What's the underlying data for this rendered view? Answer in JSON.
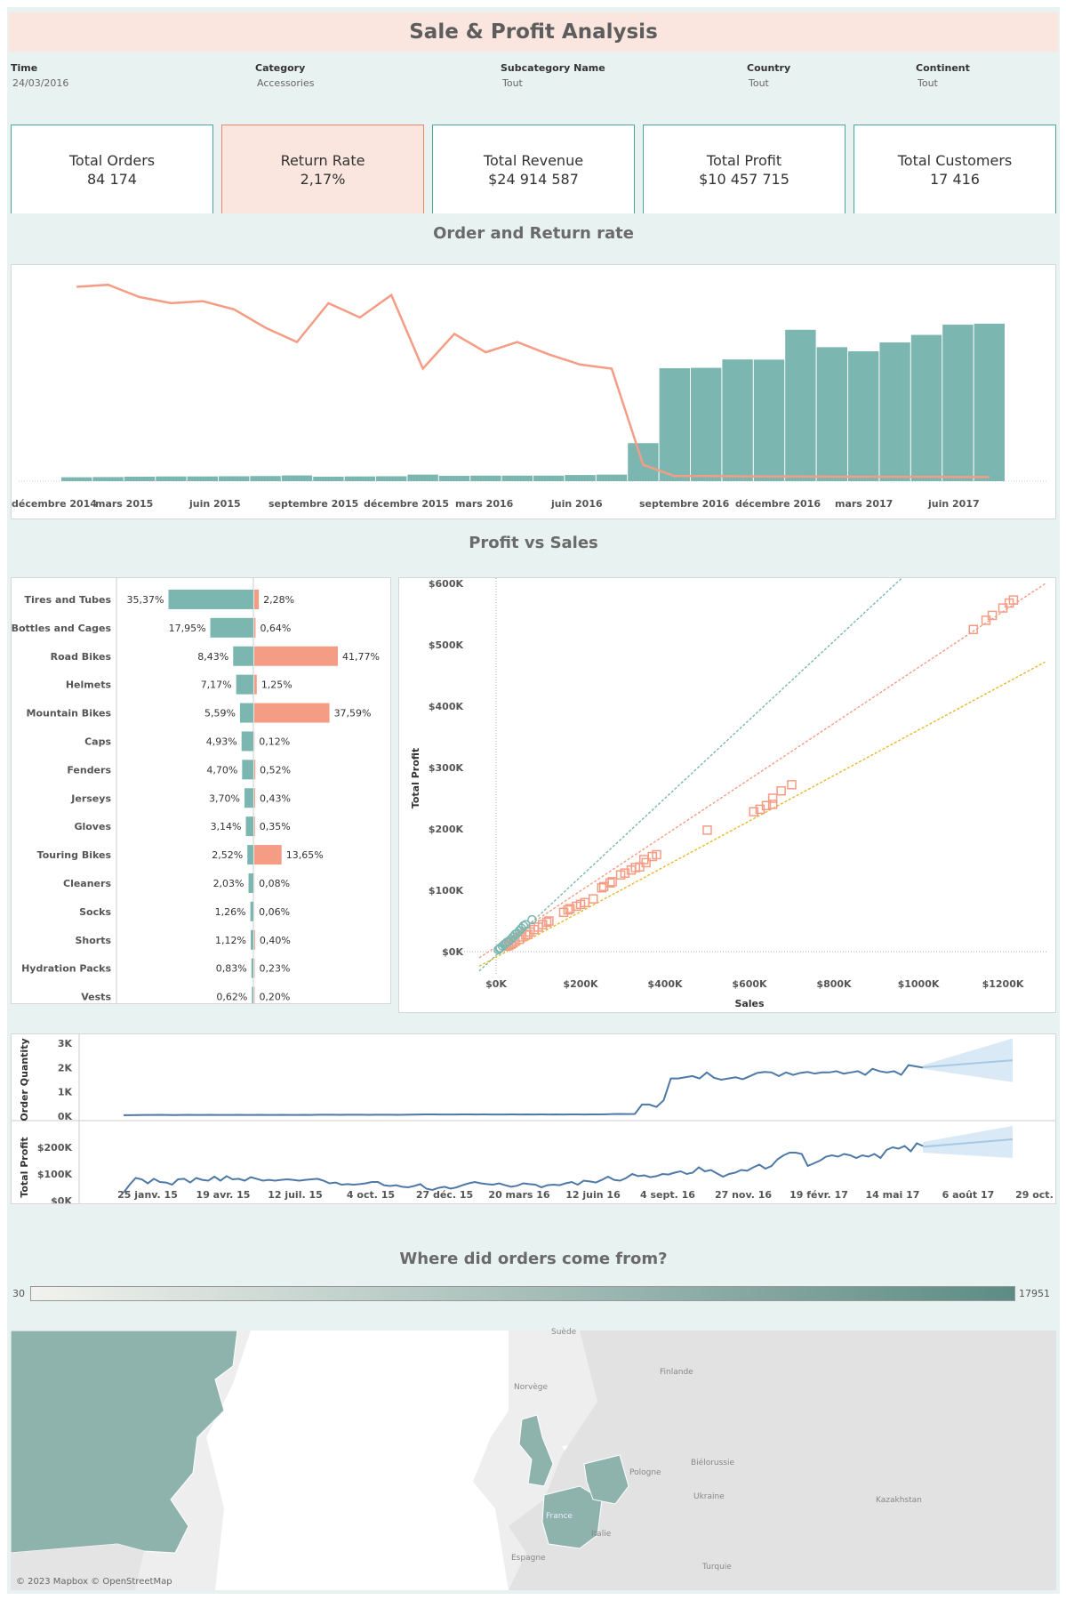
{
  "banner": {
    "title": "Sale & Profit Analysis"
  },
  "filters": [
    {
      "label": "Time",
      "value": "24/03/2016"
    },
    {
      "label": "Category",
      "value": "Accessories"
    },
    {
      "label": "Subcategory Name",
      "value": "Tout"
    },
    {
      "label": "Country",
      "value": "Tout"
    },
    {
      "label": "Continent",
      "value": "Tout"
    }
  ],
  "kpis": [
    {
      "label": "Total Orders",
      "value": "84 174"
    },
    {
      "label": "Return Rate",
      "value": "2,17%"
    },
    {
      "label": "Total Revenue",
      "value": "$24 914 587"
    },
    {
      "label": "Total Profit",
      "value": "$10 457 715"
    },
    {
      "label": "Total Customers",
      "value": "17 416"
    }
  ],
  "sections": {
    "order_return": "Order and Return rate",
    "profit_sales": "Profit vs Sales",
    "map": "Where did orders come from?"
  },
  "colors": {
    "teal": "#7bb7b0",
    "coral": "#f59c85",
    "blue": "#4e79a7",
    "light_blue": "#a6c8e4",
    "gold": "#e8b82c"
  },
  "chart_data": [
    {
      "type": "bar+line",
      "title": "Order and Return rate",
      "x_tick_labels": [
        "décembre 2014",
        "mars 2015",
        "juin 2015",
        "septembre 2015",
        "décembre 2015",
        "mars 2016",
        "juin 2016",
        "septembre 2016",
        "décembre 2016",
        "mars 2017",
        "juin 2017"
      ],
      "months": [
        "2015-01",
        "2015-02",
        "2015-03",
        "2015-04",
        "2015-05",
        "2015-06",
        "2015-07",
        "2015-08",
        "2015-09",
        "2015-10",
        "2015-11",
        "2015-12",
        "2016-01",
        "2016-02",
        "2016-03",
        "2016-04",
        "2016-05",
        "2016-06",
        "2016-07",
        "2016-08",
        "2016-09",
        "2016-10",
        "2016-11",
        "2016-12",
        "2017-01",
        "2017-02",
        "2017-03",
        "2017-04",
        "2017-05",
        "2017-06"
      ],
      "series": [
        {
          "type": "bar",
          "values": [
            1.9,
            2.0,
            2.2,
            2.3,
            2.3,
            2.4,
            2.5,
            2.8,
            2.2,
            2.3,
            2.4,
            3.2,
            2.6,
            2.7,
            2.7,
            2.7,
            3.0,
            3.2,
            18.6,
            55.2,
            55.4,
            59.5,
            59.4,
            74.0,
            65.5,
            63.5,
            67.8,
            71.5,
            76.5,
            77.0
          ]
        },
        {
          "type": "line",
          "values": [
            95,
            96,
            90,
            87,
            88,
            84,
            75,
            68,
            87,
            80,
            91,
            55,
            72,
            63,
            68,
            62,
            57,
            55,
            8,
            2.5,
            2.5,
            2.4,
            2.3,
            2.3,
            2.2,
            2.2,
            2.1,
            2.1,
            2.0,
            2.0
          ]
        }
      ]
    },
    {
      "type": "bar",
      "title": "",
      "categories": [
        "Tires and Tubes",
        "Bottles and Cages",
        "Road Bikes",
        "Helmets",
        "Mountain Bikes",
        "Caps",
        "Fenders",
        "Jerseys",
        "Gloves",
        "Touring Bikes",
        "Cleaners",
        "Socks",
        "Shorts",
        "Hydration Packs",
        "Vests"
      ],
      "series": [
        {
          "values": [
            35.37,
            17.95,
            8.43,
            7.17,
            5.59,
            4.93,
            4.7,
            3.7,
            3.14,
            2.52,
            2.03,
            1.26,
            1.12,
            0.83,
            0.62
          ],
          "labels": [
            "35,37%",
            "17,95%",
            "8,43%",
            "7,17%",
            "5,59%",
            "4,93%",
            "4,70%",
            "3,70%",
            "3,14%",
            "2,52%",
            "2,03%",
            "1,26%",
            "1,12%",
            "0,83%",
            "0,62%"
          ]
        },
        {
          "values": [
            2.28,
            0.64,
            41.77,
            1.25,
            37.59,
            0.12,
            0.52,
            0.43,
            0.35,
            13.65,
            0.08,
            0.06,
            0.4,
            0.23,
            0.2
          ],
          "labels": [
            "2,28%",
            "0,64%",
            "41,77%",
            "1,25%",
            "37,59%",
            "0,12%",
            "0,52%",
            "0,43%",
            "0,35%",
            "13,65%",
            "0,08%",
            "0,06%",
            "0,40%",
            "0,23%",
            "0,20%"
          ]
        }
      ]
    },
    {
      "type": "scatter",
      "title": "",
      "xlabel": "Sales",
      "ylabel": "Total Profit",
      "x_ticks": [
        "$0K",
        "$200K",
        "$400K",
        "$600K",
        "$800K",
        "$1000K",
        "$1200K"
      ],
      "y_ticks": [
        "$0K",
        "$100K",
        "$200K",
        "$300K",
        "$400K",
        "$500K",
        "$600K"
      ],
      "xlim": [
        0,
        1250
      ],
      "ylim": [
        -30,
        610
      ],
      "series": [
        {
          "marker": "square",
          "points": [
            [
              1130,
              525
            ],
            [
              1160,
              540
            ],
            [
              1175,
              548
            ],
            [
              1200,
              560
            ],
            [
              1215,
              568
            ],
            [
              1225,
              573
            ],
            [
              655,
              250
            ],
            [
              675,
              262
            ],
            [
              700,
              272
            ],
            [
              610,
              228
            ],
            [
              625,
              232
            ],
            [
              640,
              238
            ],
            [
              655,
              240
            ],
            [
              500,
              198
            ],
            [
              350,
              150
            ],
            [
              355,
              145
            ],
            [
              370,
              155
            ],
            [
              380,
              158
            ],
            [
              320,
              133
            ],
            [
              330,
              137
            ],
            [
              340,
              138
            ],
            [
              295,
              125
            ],
            [
              305,
              128
            ],
            [
              270,
              112
            ],
            [
              275,
              114
            ],
            [
              250,
              104
            ],
            [
              255,
              106
            ],
            [
              190,
              74
            ],
            [
              200,
              77
            ],
            [
              210,
              80
            ],
            [
              230,
              86
            ],
            [
              160,
              64
            ],
            [
              170,
              68
            ],
            [
              175,
              70
            ],
            [
              120,
              48
            ],
            [
              125,
              50
            ],
            [
              110,
              44
            ],
            [
              100,
              40
            ],
            [
              90,
              36
            ],
            [
              80,
              32
            ],
            [
              75,
              28
            ],
            [
              70,
              27
            ],
            [
              60,
              24
            ],
            [
              55,
              20
            ],
            [
              45,
              17
            ],
            [
              40,
              14
            ],
            [
              35,
              12
            ],
            [
              30,
              10
            ],
            [
              25,
              9
            ]
          ]
        },
        {
          "marker": "circle",
          "points": [
            [
              85,
              52
            ],
            [
              70,
              44
            ],
            [
              65,
              42
            ],
            [
              60,
              38
            ],
            [
              55,
              34
            ],
            [
              50,
              30
            ],
            [
              45,
              28
            ],
            [
              40,
              24
            ],
            [
              35,
              20
            ],
            [
              30,
              17
            ],
            [
              25,
              15
            ],
            [
              20,
              12
            ],
            [
              15,
              9
            ],
            [
              10,
              6
            ],
            [
              8,
              5
            ],
            [
              5,
              3
            ]
          ]
        }
      ],
      "trend_lines": [
        {
          "color": "teal",
          "slope": 0.64,
          "intercept": -6
        },
        {
          "color": "coral",
          "slope": 0.455,
          "intercept": 8
        },
        {
          "color": "gold",
          "slope": 0.37,
          "intercept": -9
        }
      ]
    },
    {
      "type": "line",
      "ylabel": "Order Quantity",
      "y_ticks": [
        "0K",
        "1K",
        "2K",
        "3K"
      ],
      "ylim": [
        0,
        3000
      ],
      "x_tick_labels": [
        "25 janv. 15",
        "19 avr. 15",
        "12 juil. 15",
        "4 oct. 15",
        "27 déc. 15",
        "20 mars 16",
        "12 juin 16",
        "4 sept. 16",
        "27 nov. 16",
        "19 févr. 17",
        "14 mai 17",
        "6 août 17",
        "29 oct. 17"
      ],
      "values": [
        40,
        40,
        45,
        50,
        52,
        55,
        50,
        48,
        52,
        55,
        50,
        52,
        55,
        50,
        52,
        50,
        55,
        52,
        50,
        55,
        52,
        50,
        55,
        52,
        50,
        55,
        52,
        58,
        60,
        58,
        55,
        58,
        60,
        58,
        55,
        58,
        60,
        58,
        55,
        60,
        65,
        70,
        75,
        72,
        70,
        68,
        70,
        72,
        75,
        70,
        72,
        70,
        68,
        70,
        72,
        70,
        75,
        70,
        72,
        70,
        75,
        70,
        72,
        75,
        70,
        72,
        75,
        80,
        85,
        90,
        85,
        90,
        480,
        480,
        380,
        650,
        1550,
        1550,
        1600,
        1650,
        1550,
        1800,
        1580,
        1500,
        1550,
        1600,
        1520,
        1650,
        1780,
        1820,
        1800,
        1650,
        1800,
        1700,
        1780,
        1820,
        1750,
        1800,
        1800,
        1850,
        1750,
        1800,
        1850,
        1700,
        1950,
        1850,
        1800,
        1850,
        1700,
        2100,
        2050,
        2000
      ],
      "forecast": {
        "start": 2010,
        "end": 2300,
        "upper": [
          2100,
          3200
        ],
        "lower": [
          1950,
          1400
        ]
      }
    },
    {
      "type": "line",
      "ylabel": "Total Profit",
      "y_ticks": [
        "$0K",
        "$100K",
        "$200K"
      ],
      "ylim": [
        -20000,
        230000
      ],
      "values": [
        10000,
        40000,
        65000,
        60000,
        45000,
        62000,
        50000,
        48000,
        40000,
        60000,
        62000,
        48000,
        65000,
        58000,
        55000,
        70000,
        55000,
        72000,
        60000,
        62000,
        55000,
        68000,
        62000,
        55000,
        58000,
        55000,
        58000,
        60000,
        58000,
        55000,
        58000,
        60000,
        62000,
        55000,
        45000,
        48000,
        40000,
        42000,
        40000,
        42000,
        45000,
        50000,
        50000,
        38000,
        35000,
        38000,
        32000,
        30000,
        35000,
        42000,
        25000,
        20000,
        28000,
        32000,
        25000,
        30000,
        38000,
        45000,
        50000,
        45000,
        42000,
        40000,
        45000,
        38000,
        32000,
        36000,
        45000,
        42000,
        40000,
        30000,
        38000,
        40000,
        38000,
        45000,
        50000,
        40000,
        55000,
        52000,
        48000,
        58000,
        70000,
        58000,
        55000,
        65000,
        80000,
        72000,
        75000,
        68000,
        72000,
        80000,
        78000,
        85000,
        90000,
        80000,
        85000,
        105000,
        90000,
        95000,
        82000,
        70000,
        80000,
        85000,
        95000,
        92000,
        105000,
        115000,
        100000,
        110000,
        135000,
        150000,
        160000,
        160000,
        155000,
        110000,
        120000,
        130000,
        145000,
        150000,
        145000,
        155000,
        150000,
        140000,
        150000,
        145000,
        155000,
        140000,
        170000,
        180000,
        175000,
        185000,
        165000,
        195000,
        185000
      ],
      "forecast": {
        "start": 182000,
        "end": 210000,
        "upper": [
          200000,
          260000
        ],
        "lower": [
          160000,
          140000
        ]
      }
    }
  ],
  "legend_scale": {
    "min": "30",
    "max": "17951"
  },
  "map": {
    "labels": [
      "Suède",
      "Norvège",
      "Finlande",
      "Biélorussie",
      "Pologne",
      "Ukraine",
      "Kazakhstan",
      "Italie",
      "Espagne",
      "Turquie",
      "France"
    ],
    "attribution": "© 2023 Mapbox © OpenStreetMap"
  }
}
